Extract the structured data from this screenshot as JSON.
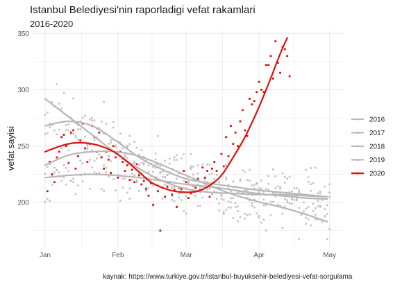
{
  "chart_data": {
    "type": "scatter",
    "title": "Istanbul Belediyesi'nin raporladigi vefat rakamlari",
    "subtitle": "2016-2020",
    "caption": "kaynak: https://www.turkiye.gov.tr/istanbul-buyuksehir-belediyesi-vefat-sorgulama",
    "xlabel": "",
    "ylabel": "vefat sayisi",
    "x_unit": "day of year",
    "xlim": [
      -5,
      127
    ],
    "ylim": [
      160,
      352
    ],
    "y_ticks": [
      200,
      250,
      300,
      350
    ],
    "x_ticks": [
      {
        "label": "Jan",
        "value": 0
      },
      {
        "label": "Feb",
        "value": 31
      },
      {
        "label": "Mar",
        "value": 60
      },
      {
        "label": "Apr",
        "value": 91
      },
      {
        "label": "May",
        "value": 121
      }
    ],
    "grid": true,
    "legend_position": "right",
    "colors": {
      "grey_series": "#b7b7b7",
      "highlight": "#e0100d",
      "grid": "#e8e8e8"
    },
    "series": [
      {
        "name": "2016",
        "color": "#b7b7b7",
        "smooth": [
          [
            0,
            268
          ],
          [
            10,
            272
          ],
          [
            20,
            268
          ],
          [
            30,
            255
          ],
          [
            40,
            240
          ],
          [
            50,
            229
          ],
          [
            60,
            221
          ],
          [
            70,
            217
          ],
          [
            80,
            214
          ],
          [
            90,
            211
          ],
          [
            100,
            209
          ],
          [
            110,
            207
          ],
          [
            120,
            205
          ]
        ]
      },
      {
        "name": "2017",
        "color": "#b7b7b7",
        "smooth": [
          [
            0,
            222
          ],
          [
            10,
            224
          ],
          [
            20,
            225
          ],
          [
            30,
            224
          ],
          [
            40,
            222
          ],
          [
            50,
            219
          ],
          [
            60,
            216
          ],
          [
            70,
            214
          ],
          [
            80,
            211
          ],
          [
            90,
            208
          ],
          [
            100,
            206
          ],
          [
            110,
            204
          ],
          [
            120,
            203
          ]
        ]
      },
      {
        "name": "2018",
        "color": "#b7b7b7",
        "smooth": [
          [
            0,
            292
          ],
          [
            10,
            276
          ],
          [
            20,
            260
          ],
          [
            30,
            244
          ],
          [
            40,
            230
          ],
          [
            50,
            219
          ],
          [
            60,
            212
          ],
          [
            70,
            209
          ],
          [
            80,
            208
          ],
          [
            90,
            207
          ],
          [
            100,
            207
          ],
          [
            110,
            206
          ],
          [
            120,
            205
          ]
        ]
      },
      {
        "name": "2019",
        "color": "#b7b7b7",
        "smooth": [
          [
            0,
            233
          ],
          [
            10,
            242
          ],
          [
            20,
            245
          ],
          [
            30,
            245
          ],
          [
            40,
            241
          ],
          [
            50,
            233
          ],
          [
            60,
            224
          ],
          [
            70,
            215
          ],
          [
            80,
            207
          ],
          [
            90,
            201
          ],
          [
            100,
            196
          ],
          [
            110,
            190
          ],
          [
            120,
            183
          ]
        ]
      },
      {
        "name": "2020",
        "color": "#e0100d",
        "smooth": [
          [
            0,
            245
          ],
          [
            5,
            249
          ],
          [
            10,
            252
          ],
          [
            15,
            253
          ],
          [
            20,
            252
          ],
          [
            25,
            249
          ],
          [
            30,
            244
          ],
          [
            35,
            236
          ],
          [
            40,
            227
          ],
          [
            45,
            218
          ],
          [
            50,
            213
          ],
          [
            55,
            210
          ],
          [
            60,
            209
          ],
          [
            65,
            210
          ],
          [
            70,
            215
          ],
          [
            75,
            224
          ],
          [
            80,
            240
          ],
          [
            85,
            258
          ],
          [
            90,
            280
          ],
          [
            95,
            305
          ],
          [
            100,
            332
          ],
          [
            103,
            346
          ]
        ],
        "points": [
          [
            1,
            210
          ],
          [
            2,
            236
          ],
          [
            3,
            225
          ],
          [
            4,
            218
          ],
          [
            5,
            240
          ],
          [
            6,
            245
          ],
          [
            7,
            258
          ],
          [
            8,
            260
          ],
          [
            9,
            250
          ],
          [
            10,
            235
          ],
          [
            11,
            262
          ],
          [
            12,
            264
          ],
          [
            13,
            230
          ],
          [
            14,
            241
          ],
          [
            15,
            255
          ],
          [
            16,
            270
          ],
          [
            17,
            248
          ],
          [
            18,
            236
          ],
          [
            19,
            252
          ],
          [
            20,
            268
          ],
          [
            21,
            258
          ],
          [
            22,
            245
          ],
          [
            23,
            262
          ],
          [
            24,
            240
          ],
          [
            25,
            230
          ],
          [
            26,
            245
          ],
          [
            27,
            238
          ],
          [
            28,
            226
          ],
          [
            29,
            250
          ],
          [
            30,
            240
          ],
          [
            31,
            222
          ],
          [
            32,
            245
          ],
          [
            33,
            236
          ],
          [
            34,
            228
          ],
          [
            35,
            233
          ],
          [
            36,
            220
          ],
          [
            37,
            229
          ],
          [
            38,
            218
          ],
          [
            39,
            234
          ],
          [
            40,
            224
          ],
          [
            41,
            216
          ],
          [
            42,
            219
          ],
          [
            43,
            212
          ],
          [
            44,
            206
          ],
          [
            45,
            217
          ],
          [
            46,
            198
          ],
          [
            47,
            222
          ],
          [
            48,
            210
          ],
          [
            49,
            175
          ],
          [
            50,
            213
          ],
          [
            51,
            205
          ],
          [
            52,
            214
          ],
          [
            53,
            218
          ],
          [
            54,
            207
          ],
          [
            55,
            211
          ],
          [
            56,
            196
          ],
          [
            57,
            213
          ],
          [
            58,
            212
          ],
          [
            59,
            228
          ],
          [
            60,
            218
          ],
          [
            61,
            204
          ],
          [
            62,
            208
          ],
          [
            63,
            215
          ],
          [
            64,
            213
          ],
          [
            65,
            221
          ],
          [
            66,
            211
          ],
          [
            67,
            231
          ],
          [
            68,
            222
          ],
          [
            69,
            228
          ],
          [
            70,
            205
          ],
          [
            71,
            230
          ],
          [
            72,
            236
          ],
          [
            73,
            228
          ],
          [
            74,
            212
          ],
          [
            75,
            243
          ],
          [
            76,
            232
          ],
          [
            77,
            258
          ],
          [
            78,
            241
          ],
          [
            79,
            268
          ],
          [
            80,
            252
          ],
          [
            81,
            262
          ],
          [
            82,
            250
          ],
          [
            83,
            272
          ],
          [
            84,
            282
          ],
          [
            85,
            264
          ],
          [
            86,
            259
          ],
          [
            87,
            292
          ],
          [
            88,
            287
          ],
          [
            89,
            290
          ],
          [
            90,
            298
          ],
          [
            91,
            307
          ],
          [
            92,
            300
          ],
          [
            93,
            298
          ],
          [
            94,
            322
          ],
          [
            95,
            322
          ],
          [
            96,
            330
          ],
          [
            97,
            310
          ],
          [
            98,
            343
          ],
          [
            99,
            324
          ],
          [
            100,
            315
          ],
          [
            101,
            338
          ],
          [
            102,
            336
          ],
          [
            103,
            330
          ],
          [
            104,
            312
          ]
        ]
      }
    ]
  }
}
